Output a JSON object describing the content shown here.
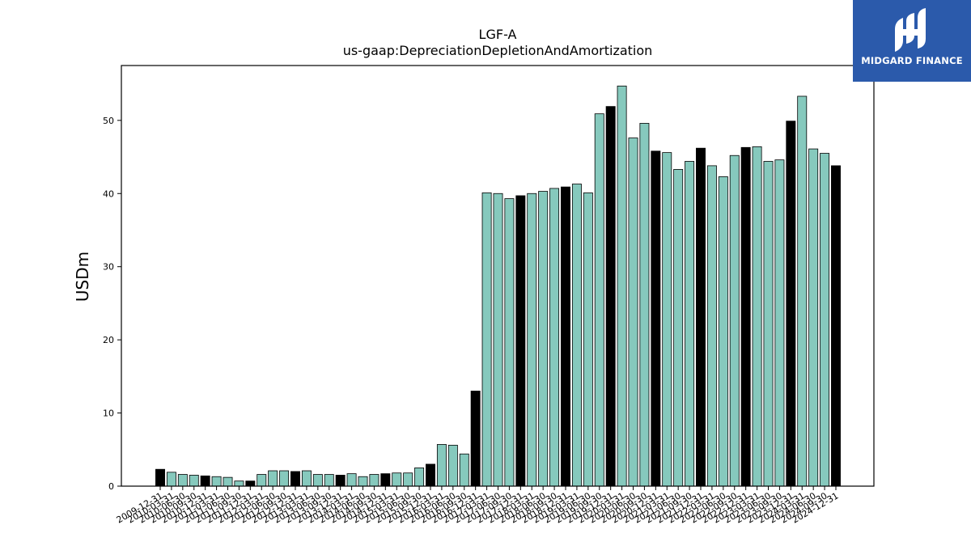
{
  "logo": {
    "text": "MIDGARD FINANCE",
    "icon": "midgard-logo-icon",
    "color": "#2b5aab"
  },
  "chart_data": {
    "type": "bar",
    "title": "LGF-A",
    "subtitle": "us-gaap:DepreciationDepletionAndAmortization",
    "xlabel": "",
    "ylabel": "USDm",
    "ylim": [
      0,
      57.5
    ],
    "yticks": [
      0,
      10,
      20,
      30,
      40,
      50
    ],
    "grid": false,
    "colors": {
      "annual": "#000000",
      "quarterly": "#86c9bd"
    },
    "categories": [
      "2009-12-31",
      "2010-03-31",
      "2010-06-30",
      "2010-09-30",
      "2010-12-31",
      "2011-03-31",
      "2011-06-30",
      "2011-09-30",
      "2011-12-31",
      "2012-03-31",
      "2012-06-30",
      "2012-09-30",
      "2012-12-31",
      "2013-03-31",
      "2013-06-30",
      "2013-09-30",
      "2013-12-31",
      "2014-03-31",
      "2014-06-30",
      "2014-09-30",
      "2014-12-31",
      "2015-03-31",
      "2015-06-30",
      "2015-09-30",
      "2015-12-31",
      "2016-03-31",
      "2016-06-30",
      "2016-09-30",
      "2016-12-31",
      "2017-03-31",
      "2017-06-30",
      "2017-09-30",
      "2017-12-31",
      "2018-03-31",
      "2018-06-30",
      "2018-09-30",
      "2018-12-31",
      "2019-03-31",
      "2019-06-30",
      "2019-09-30",
      "2019-12-31",
      "2020-03-31",
      "2020-06-30",
      "2020-09-30",
      "2020-12-31",
      "2021-03-31",
      "2021-06-30",
      "2021-09-30",
      "2021-12-31",
      "2022-03-31",
      "2022-06-30",
      "2022-09-30",
      "2022-12-31",
      "2023-03-31",
      "2023-06-30",
      "2023-09-30",
      "2023-12-31",
      "2024-03-31",
      "2024-06-30",
      "2024-09-30",
      "2024-12-31"
    ],
    "values": [
      2.3,
      1.9,
      1.6,
      1.5,
      1.4,
      1.3,
      1.2,
      0.7,
      0.7,
      1.6,
      2.1,
      2.1,
      2.0,
      2.1,
      1.6,
      1.6,
      1.5,
      1.7,
      1.3,
      1.6,
      1.7,
      1.8,
      1.8,
      2.5,
      3.0,
      5.7,
      5.6,
      4.4,
      13.0,
      40.1,
      40.0,
      39.3,
      39.7,
      40.0,
      40.3,
      40.7,
      40.9,
      41.3,
      40.1,
      50.9,
      51.9,
      54.7,
      47.6,
      49.6,
      45.8,
      45.6,
      43.3,
      44.4,
      46.2,
      43.8,
      42.3,
      45.2,
      46.3,
      46.4,
      44.4,
      44.6,
      49.9,
      53.3,
      46.1,
      45.5,
      43.8
    ],
    "annual_flags": [
      1,
      0,
      0,
      0,
      1,
      0,
      0,
      0,
      1,
      0,
      0,
      0,
      1,
      0,
      0,
      0,
      1,
      0,
      0,
      0,
      1,
      0,
      0,
      0,
      1,
      0,
      0,
      0,
      1,
      0,
      0,
      0,
      1,
      0,
      0,
      0,
      1,
      0,
      0,
      0,
      1,
      0,
      0,
      0,
      1,
      0,
      0,
      0,
      1,
      0,
      0,
      0,
      1,
      0,
      0,
      0,
      1,
      0,
      0,
      0,
      1
    ]
  }
}
